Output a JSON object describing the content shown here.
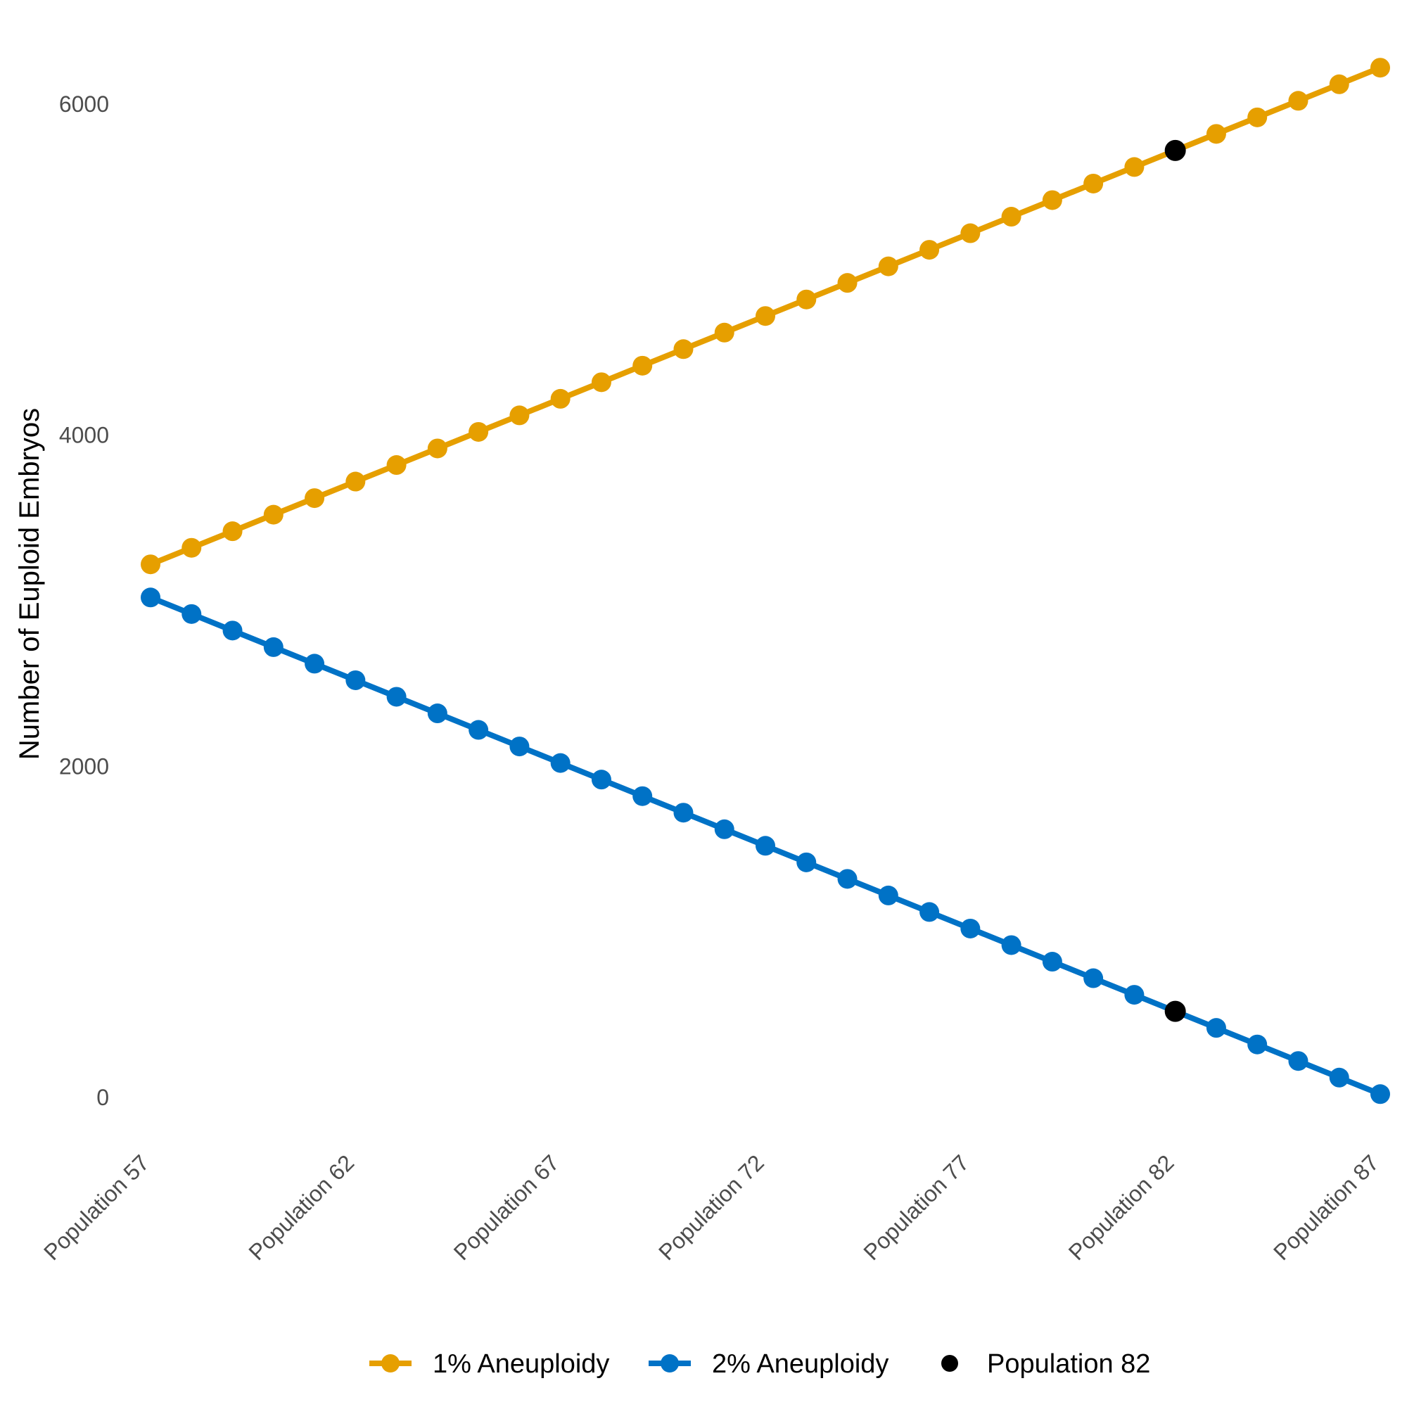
{
  "chart_data": {
    "type": "line",
    "title": "",
    "xlabel": "",
    "ylabel": "Number of Euploid Embryos",
    "x": [
      "Population 57",
      "Population 58",
      "Population 59",
      "Population 60",
      "Population 61",
      "Population 62",
      "Population 63",
      "Population 64",
      "Population 65",
      "Population 66",
      "Population 67",
      "Population 68",
      "Population 69",
      "Population 70",
      "Population 71",
      "Population 72",
      "Population 73",
      "Population 74",
      "Population 75",
      "Population 76",
      "Population 77",
      "Population 78",
      "Population 79",
      "Population 80",
      "Population 81",
      "Population 82",
      "Population 83",
      "Population 84",
      "Population 85",
      "Population 86",
      "Population 87"
    ],
    "x_tick_labels": [
      "Population 57",
      "Population 62",
      "Population 67",
      "Population 72",
      "Population 77",
      "Population 82",
      "Population 87"
    ],
    "y_ticks": [
      0,
      2000,
      4000,
      6000
    ],
    "ylim": [
      -270,
      6300
    ],
    "grid": false,
    "legend_position": "bottom",
    "series": [
      {
        "name": "1% Aneuploidy",
        "color": "#E69F00",
        "values": [
          3220,
          3320,
          3420,
          3520,
          3620,
          3720,
          3820,
          3920,
          4020,
          4120,
          4220,
          4320,
          4420,
          4520,
          4620,
          4720,
          4820,
          4920,
          5020,
          5120,
          5220,
          5320,
          5420,
          5520,
          5620,
          5720,
          5820,
          5920,
          6020,
          6120,
          6220
        ]
      },
      {
        "name": "2% Aneuploidy",
        "color": "#0072C6",
        "values": [
          3020,
          2920,
          2820,
          2720,
          2620,
          2520,
          2420,
          2320,
          2220,
          2120,
          2020,
          1920,
          1820,
          1720,
          1620,
          1520,
          1420,
          1320,
          1220,
          1120,
          1020,
          920,
          820,
          720,
          620,
          520,
          420,
          320,
          220,
          120,
          20
        ]
      }
    ],
    "highlight": {
      "name": "Population 82",
      "color": "#000000",
      "x": "Population 82",
      "points": [
        5720,
        520
      ]
    }
  }
}
